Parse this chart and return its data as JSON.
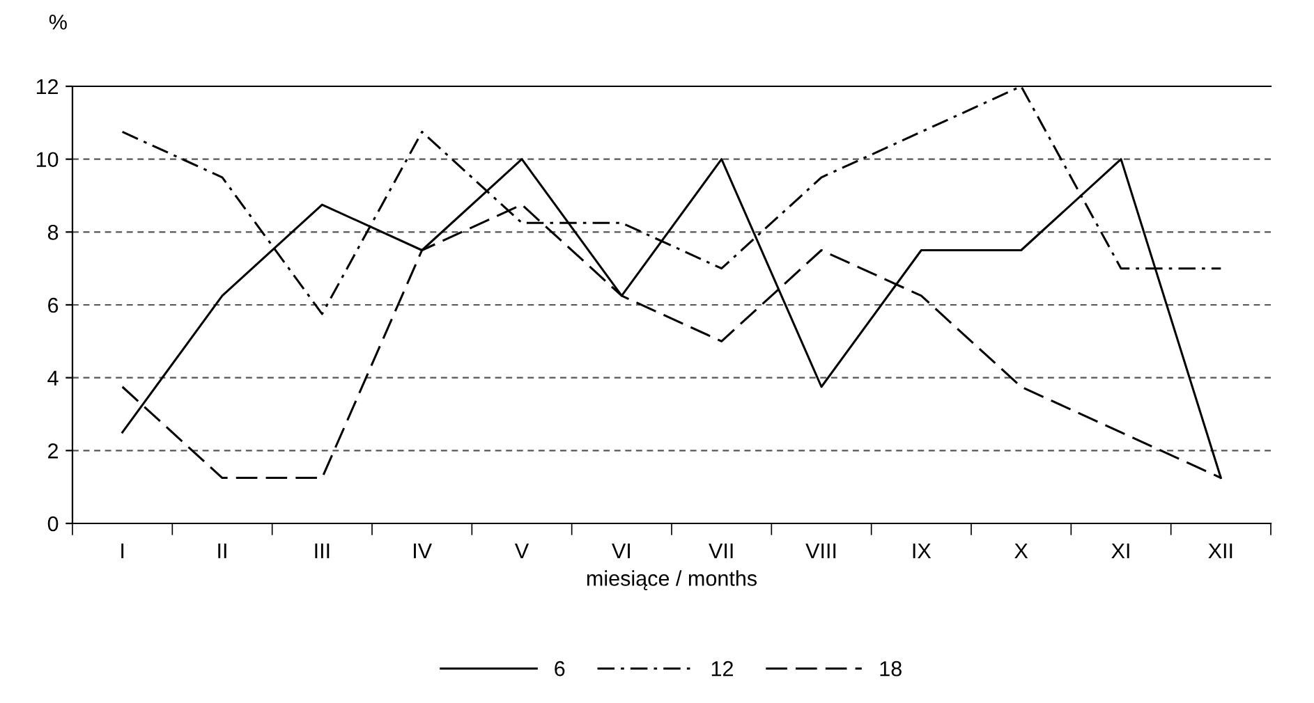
{
  "chart_data": {
    "type": "line",
    "ylabel": "%",
    "xlabel": "miesiące / months",
    "categories": [
      "I",
      "II",
      "III",
      "IV",
      "V",
      "VI",
      "VII",
      "VIII",
      "IX",
      "X",
      "XI",
      "XII"
    ],
    "series": [
      {
        "name": "6",
        "color": "#000000",
        "line_style": "solid",
        "values": [
          2.5,
          6.25,
          8.75,
          7.5,
          10,
          6.25,
          10,
          3.75,
          7.5,
          7.5,
          10,
          1.25
        ]
      },
      {
        "name": "12",
        "color": "#000000",
        "line_style": "dashdot",
        "values": [
          10.75,
          9.5,
          5.75,
          10.75,
          8.25,
          8.25,
          7,
          9.5,
          10.75,
          12,
          7,
          7
        ]
      },
      {
        "name": "18",
        "color": "#000000",
        "line_style": "dashed",
        "values": [
          3.75,
          1.25,
          1.25,
          7.5,
          8.75,
          6.25,
          5,
          7.5,
          6.25,
          3.75,
          2.5,
          1.25
        ]
      }
    ],
    "ylim": [
      0,
      12
    ],
    "yticks": [
      0,
      2,
      4,
      6,
      8,
      10,
      12
    ],
    "grid": "y",
    "legend": "bottom",
    "marker": "none"
  }
}
